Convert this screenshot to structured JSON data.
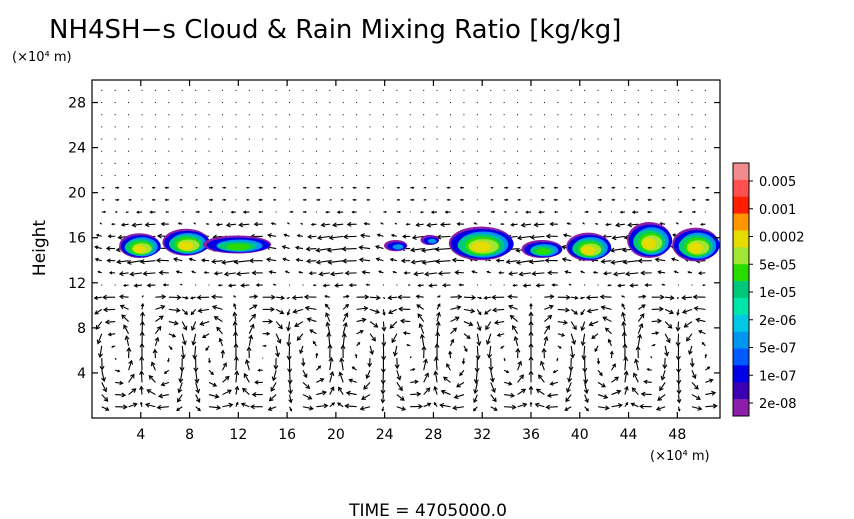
{
  "chart_data": {
    "type": "heatmap",
    "title": "NH4SH−s Cloud & Rain Mixing Ratio [kg/kg]",
    "ylabel": "Height",
    "y_unit": "(×10⁴ m)",
    "x_unit": "(×10⁴ m)",
    "xlim": [
      0,
      51.5
    ],
    "ylim": [
      0,
      30
    ],
    "x_ticks": [
      4,
      8,
      12,
      16,
      20,
      24,
      28,
      32,
      36,
      40,
      44,
      48
    ],
    "y_ticks": [
      4,
      8,
      12,
      16,
      20,
      24,
      28
    ],
    "colorbar": {
      "labels": [
        "0.005",
        "0.001",
        "0.0002",
        "5e-05",
        "1e-05",
        "2e-06",
        "5e-07",
        "1e-07",
        "2e-08"
      ],
      "colors": [
        "#f08c8c",
        "#ff5050",
        "#ff1e00",
        "#ff9600",
        "#e6dc00",
        "#a0e632",
        "#28dc00",
        "#00c87a",
        "#00e6aa",
        "#00c8e6",
        "#0096f0",
        "#005aff",
        "#0000e6",
        "#3c00b4",
        "#8c1eaa"
      ]
    },
    "cloud_features": [
      {
        "x": 4.0,
        "y": 15.3,
        "w": 3.5,
        "h": 2.2,
        "peak": "5e-05"
      },
      {
        "x": 7.8,
        "y": 15.6,
        "w": 4.0,
        "h": 2.4,
        "peak": "5e-05"
      },
      {
        "x": 12.0,
        "y": 15.4,
        "w": 5.8,
        "h": 1.6,
        "peak": "1e-05"
      },
      {
        "x": 25.0,
        "y": 15.3,
        "w": 2.0,
        "h": 1.0,
        "peak": "5e-07"
      },
      {
        "x": 27.8,
        "y": 15.8,
        "w": 1.6,
        "h": 0.9,
        "peak": "5e-07"
      },
      {
        "x": 32.0,
        "y": 15.5,
        "w": 5.5,
        "h": 3.0,
        "peak": "5e-05"
      },
      {
        "x": 37.0,
        "y": 15.0,
        "w": 3.5,
        "h": 1.6,
        "peak": "1e-05"
      },
      {
        "x": 40.8,
        "y": 15.2,
        "w": 3.8,
        "h": 2.5,
        "peak": "5e-05"
      },
      {
        "x": 45.8,
        "y": 15.8,
        "w": 3.8,
        "h": 3.2,
        "peak": "5e-05"
      },
      {
        "x": 49.6,
        "y": 15.4,
        "w": 4.0,
        "h": 3.0,
        "peak": "5e-05"
      }
    ]
  },
  "time_label": "TIME  =  4705000.0"
}
